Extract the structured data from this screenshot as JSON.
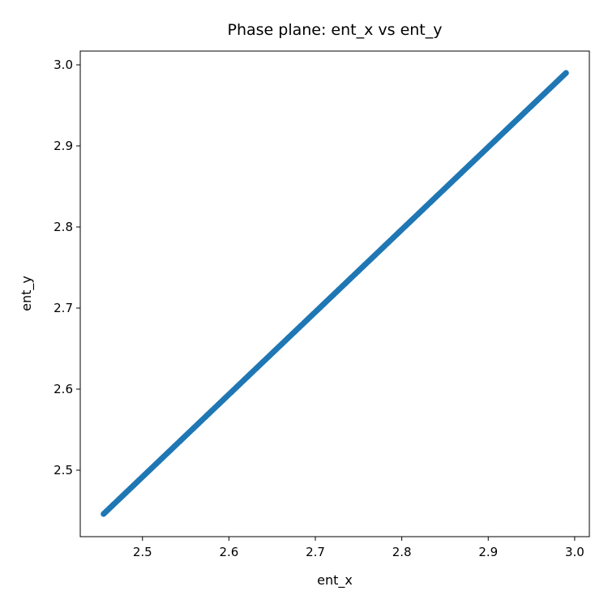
{
  "chart_data": {
    "type": "scatter",
    "title": "Phase plane: ent_x vs ent_y",
    "xlabel": "ent_x",
    "ylabel": "ent_y",
    "xlim": [
      2.428,
      3.017
    ],
    "ylim": [
      2.418,
      3.017
    ],
    "xticks": [
      2.5,
      2.6,
      2.7,
      2.8,
      2.9,
      3.0
    ],
    "yticks": [
      2.5,
      2.6,
      2.7,
      2.8,
      2.9,
      3.0
    ],
    "xtick_labels": [
      "2.5",
      "2.6",
      "2.7",
      "2.8",
      "2.9",
      "3.0"
    ],
    "ytick_labels": [
      "2.5",
      "2.6",
      "2.7",
      "2.8",
      "2.9",
      "3.0"
    ],
    "grid": false,
    "series": [
      {
        "name": "ent_x vs ent_y",
        "color": "#1f77b4",
        "x_start": 2.455,
        "x_end": 2.99,
        "y_start": 2.446,
        "y_end": 2.99,
        "n_points": 400
      }
    ]
  }
}
